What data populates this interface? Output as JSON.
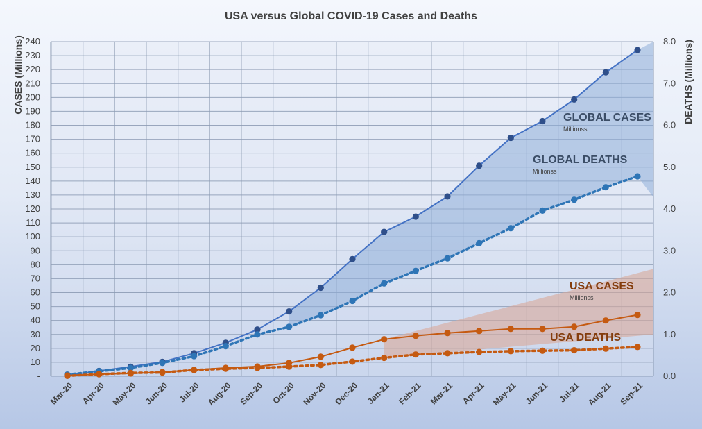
{
  "chart_data": {
    "type": "line",
    "title": "USA versus Global COVID-19 Cases and Deaths",
    "categories": [
      "Mar-20",
      "Apr-20",
      "May-20",
      "Jun-20",
      "Jul-20",
      "Aug-20",
      "Sep-20",
      "Oct-20",
      "Nov-20",
      "Dec-20",
      "Jan-21",
      "Feb-21",
      "Mar-21",
      "Apr-21",
      "May-21",
      "Jun-21",
      "Jul-21",
      "Aug-21",
      "Sep-21"
    ],
    "ylabel": "CASES (Millions)",
    "y2label": "DEATHS (Millions)",
    "ylim": [
      0,
      240
    ],
    "y2lim": [
      0,
      8
    ],
    "yticks": [
      "-",
      "10",
      "20",
      "30",
      "40",
      "50",
      "60",
      "70",
      "80",
      "90",
      "100",
      "110",
      "120",
      "130",
      "140",
      "150",
      "160",
      "170",
      "180",
      "190",
      "200",
      "210",
      "220",
      "230",
      "240"
    ],
    "y2ticks": [
      "0.0",
      "1.0",
      "2.0",
      "3.0",
      "4.0",
      "5.0",
      "6.0",
      "7.0",
      "8.0"
    ],
    "grid": true,
    "series": [
      {
        "name": "GLOBAL CASES",
        "axis": "left",
        "style": "solid",
        "color": "#4472c4",
        "marker_color": "#2f4f8a",
        "values": [
          0.8,
          3.8,
          6.8,
          10.3,
          16.5,
          24.0,
          33.5,
          46.5,
          63.5,
          84.0,
          103.5,
          114.5,
          129.0,
          151.0,
          171.0,
          183.0,
          198.5,
          218.0,
          234.0
        ]
      },
      {
        "name": "GLOBAL DEATHS",
        "axis": "right",
        "style": "dotted",
        "color": "#2e75b6",
        "marker_color": "#2e75b6",
        "values": [
          0.04,
          0.12,
          0.2,
          0.32,
          0.48,
          0.72,
          1.0,
          1.18,
          1.46,
          1.8,
          2.22,
          2.52,
          2.82,
          3.18,
          3.54,
          3.96,
          4.22,
          4.52,
          4.78
        ]
      },
      {
        "name": "USA CASES",
        "axis": "left",
        "style": "solid",
        "color": "#c55a11",
        "marker_color": "#c55a11",
        "values": [
          0.5,
          1.5,
          2.0,
          3.0,
          4.5,
          6.0,
          7.0,
          9.5,
          14.0,
          20.5,
          26.5,
          29.0,
          31.0,
          32.5,
          34.0,
          34.0,
          35.5,
          40.0,
          44.0
        ]
      },
      {
        "name": "USA DEATHS",
        "axis": "right",
        "style": "dotted",
        "color": "#c55a11",
        "marker_color": "#c55a11",
        "values": [
          0.01,
          0.05,
          0.08,
          0.09,
          0.15,
          0.18,
          0.2,
          0.23,
          0.27,
          0.35,
          0.44,
          0.52,
          0.55,
          0.58,
          0.6,
          0.61,
          0.62,
          0.66,
          0.7
        ]
      }
    ],
    "annotations": [
      {
        "text": "GLOBAL CASES",
        "sub": "Millionss",
        "color": "#3b4d66"
      },
      {
        "text": "GLOBAL DEATHS",
        "sub": "Millionss",
        "color": "#3b4d66"
      },
      {
        "text": "USA CASES",
        "sub": "Millionss",
        "color": "#843c0c"
      },
      {
        "text": "USA DEATHS",
        "sub": "",
        "color": "#843c0c"
      }
    ],
    "bands": [
      {
        "name": "global-band",
        "color": "#8fafd9"
      },
      {
        "name": "usa-band",
        "color": "#d9a899"
      }
    ]
  }
}
